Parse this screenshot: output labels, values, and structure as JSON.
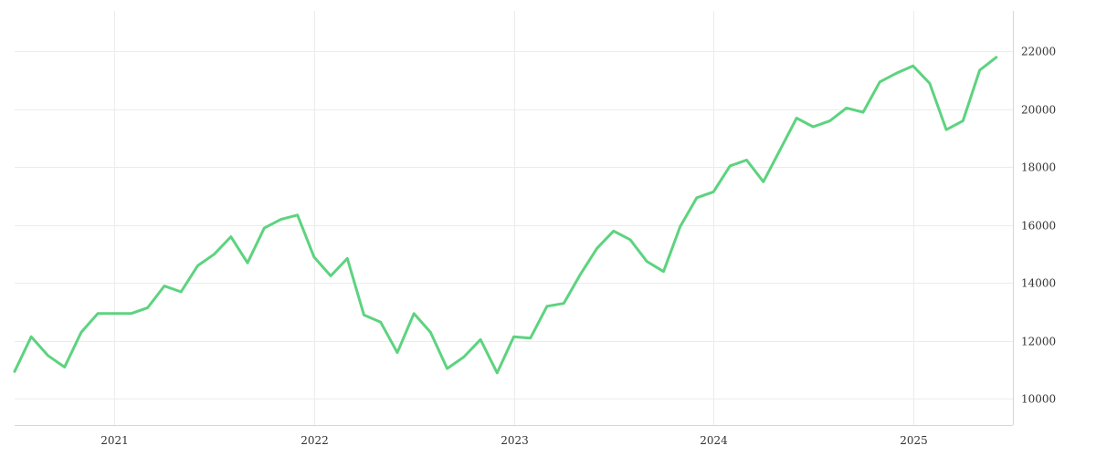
{
  "chart_data": {
    "type": "line",
    "title": "",
    "xlabel": "",
    "ylabel": "",
    "ylim": [
      9100,
      23400
    ],
    "y_ticks": [
      10000,
      12000,
      14000,
      16000,
      18000,
      20000,
      22000
    ],
    "x_ticks": [
      "2021",
      "2022",
      "2023",
      "2024",
      "2025"
    ],
    "grid": true,
    "y_axis_position": "right",
    "series_color": "#5dd37f",
    "series": [
      {
        "x": [
          "2020-07",
          "2020-08",
          "2020-09",
          "2020-10",
          "2020-11",
          "2020-12",
          "2021-01",
          "2021-02",
          "2021-03",
          "2021-04",
          "2021-05",
          "2021-06",
          "2021-07",
          "2021-08",
          "2021-09",
          "2021-10",
          "2021-11",
          "2021-12",
          "2022-01",
          "2022-02",
          "2022-03",
          "2022-04",
          "2022-05",
          "2022-06",
          "2022-07",
          "2022-08",
          "2022-09",
          "2022-10",
          "2022-11",
          "2022-12",
          "2023-01",
          "2023-02",
          "2023-03",
          "2023-04",
          "2023-05",
          "2023-06",
          "2023-07",
          "2023-08",
          "2023-09",
          "2023-10",
          "2023-11",
          "2023-12",
          "2024-01",
          "2024-02",
          "2024-03",
          "2024-04",
          "2024-05",
          "2024-06",
          "2024-07",
          "2024-08",
          "2024-09",
          "2024-10",
          "2024-11",
          "2024-12",
          "2025-01",
          "2025-02",
          "2025-03",
          "2025-04",
          "2025-05",
          "2025-06"
        ],
        "values": [
          10950,
          12150,
          11500,
          11100,
          12300,
          12950,
          12950,
          12950,
          13150,
          13900,
          13700,
          14600,
          15000,
          15600,
          14700,
          15900,
          16200,
          16350,
          14900,
          14250,
          14850,
          12900,
          12650,
          11600,
          12950,
          12300,
          11050,
          11450,
          12050,
          10900,
          12150,
          12100,
          13200,
          13300,
          14300,
          15200,
          15800,
          15500,
          14750,
          14400,
          15950,
          16950,
          17150,
          18050,
          18250,
          17500,
          18600,
          19700,
          19400,
          19600,
          20050,
          19900,
          20950,
          21250,
          21500,
          20900,
          19300,
          19600,
          21350,
          21800
        ]
      }
    ]
  }
}
